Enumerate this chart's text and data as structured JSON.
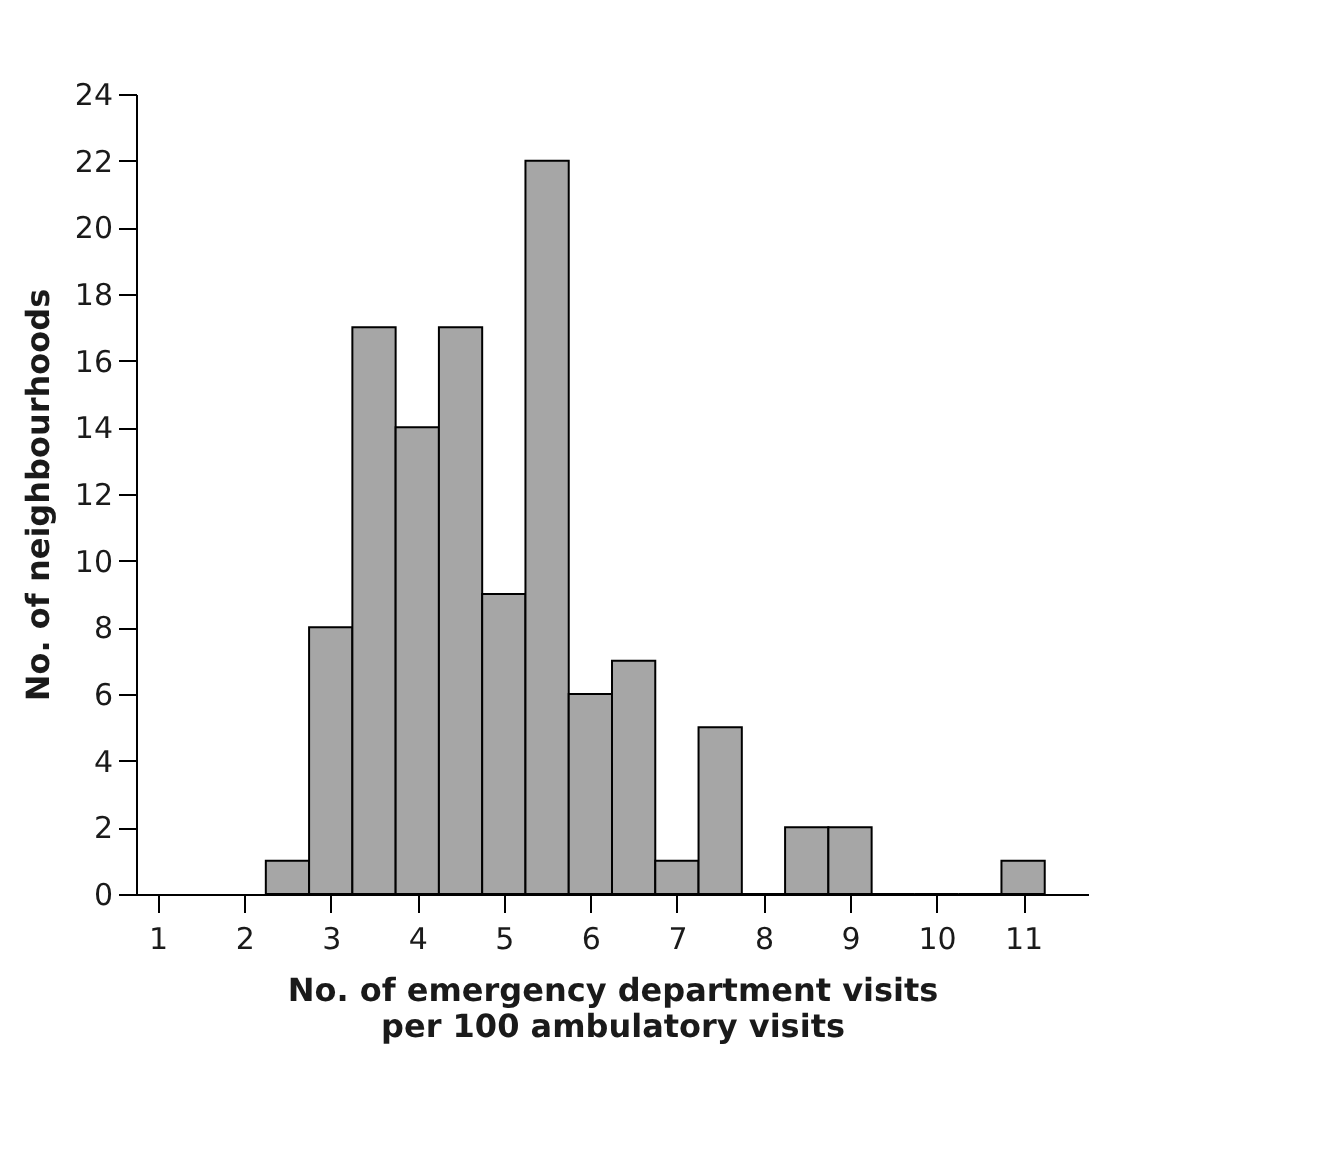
{
  "chart_data": {
    "type": "histogram",
    "xlabel": "No. of emergency department visits\nper 100 ambulatory visits",
    "ylabel": "No. of neighbourhoods",
    "bins": [
      2.25,
      2.75,
      3.25,
      3.75,
      4.25,
      4.75,
      5.25,
      5.75,
      6.25,
      6.75,
      7.25,
      7.75,
      8.25,
      8.75,
      9.25,
      9.75,
      10.25,
      10.75,
      11.25
    ],
    "values": [
      1,
      8,
      17,
      14,
      17,
      9,
      22,
      6,
      7,
      1,
      5,
      0,
      2,
      2,
      0,
      0,
      0,
      1
    ],
    "color": "#a6a6a6",
    "xlim": [
      0.75,
      11.75
    ],
    "xticks": [
      1,
      2,
      3,
      4,
      5,
      6,
      7,
      8,
      9,
      10,
      11
    ],
    "ylim": [
      0,
      24
    ],
    "yticks": [
      0,
      2,
      4,
      6,
      8,
      10,
      12,
      14,
      16,
      18,
      20,
      22,
      24
    ],
    "grid": false
  }
}
